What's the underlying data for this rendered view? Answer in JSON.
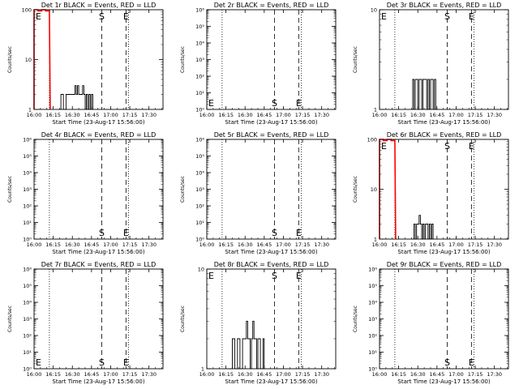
{
  "figure": {
    "background": "#ffffff",
    "foreground": "#000000",
    "event_color": "#000000",
    "lld_color": "#ff0000"
  },
  "chart_data": [
    {
      "id": "det1r",
      "type": "line",
      "title": "Det 1r BLACK = Events, RED = LLD",
      "xlabel": "Start Time (23-Aug-17 15:56:00)",
      "ylabel": "Counts/sec",
      "xlim": [
        "16:00",
        "17:41"
      ],
      "yscale": "log",
      "ylim": [
        1,
        100
      ],
      "x_ticks": [
        "16:00",
        "16:15",
        "16:30",
        "16:45",
        "17:00",
        "17:15",
        "17:30"
      ],
      "y_ticks": [
        "1",
        "10",
        "100"
      ],
      "markers": [
        {
          "label": "E",
          "x": "16:00",
          "style": "none"
        },
        {
          "label": "",
          "x": "16:12",
          "style": "dotted"
        },
        {
          "label": "S",
          "x": "16:53",
          "style": "dashed"
        },
        {
          "label": "E",
          "x": "17:12",
          "style": "dashed"
        },
        {
          "label": "",
          "x": "17:14",
          "style": "dotted"
        }
      ],
      "series": [
        {
          "color": "#000000",
          "x": [
            "16:20",
            "16:21",
            "16:23",
            "16:25",
            "16:27",
            "16:29",
            "16:31",
            "16:32",
            "16:33",
            "16:34",
            "16:35",
            "16:36",
            "16:37",
            "16:38",
            "16:39",
            "16:40",
            "16:41",
            "16:42",
            "16:43",
            "16:44",
            "16:45",
            "16:46"
          ],
          "y": [
            1,
            2,
            1,
            2,
            2,
            2,
            2,
            3,
            2,
            3,
            2,
            2,
            2,
            3,
            2,
            1,
            2,
            1,
            2,
            1,
            2,
            1
          ]
        },
        {
          "color": "#ff0000",
          "x": [
            "16:00",
            "16:03",
            "16:06",
            "16:09",
            "16:12"
          ],
          "y": [
            100,
            95,
            100,
            95,
            100
          ]
        }
      ]
    },
    {
      "id": "det2r",
      "type": "line",
      "title": "Det 2r BLACK = Events, RED = LLD",
      "xlabel": "Start Time (23-Aug-17 15:56:00)",
      "ylabel": "Counts/sec",
      "xlim": [
        "16:00",
        "17:41"
      ],
      "yscale": "log",
      "ylim": [
        1,
        1000000
      ],
      "x_ticks": [
        "16:00",
        "16:15",
        "16:30",
        "16:45",
        "17:00",
        "17:15",
        "17:30"
      ],
      "y_ticks": [
        "10⁰",
        "10¹",
        "10²",
        "10³",
        "10⁴",
        "10⁵",
        "10⁶"
      ],
      "markers": [
        {
          "label": "E",
          "x": "16:00",
          "style": "none"
        },
        {
          "label": "",
          "x": "16:12",
          "style": "dotted"
        },
        {
          "label": "S",
          "x": "16:53",
          "style": "dashed"
        },
        {
          "label": "E",
          "x": "17:12",
          "style": "dashed"
        },
        {
          "label": "",
          "x": "17:14",
          "style": "dotted"
        }
      ],
      "series": []
    },
    {
      "id": "det3r",
      "type": "line",
      "title": "Det 3r BLACK = Events, RED = LLD",
      "xlabel": "Start Time (23-Aug-17 15:56:00)",
      "ylabel": "Counts/sec",
      "xlim": [
        "16:00",
        "17:41"
      ],
      "yscale": "log",
      "ylim": [
        1,
        10
      ],
      "x_ticks": [
        "16:00",
        "16:15",
        "16:30",
        "16:45",
        "17:00",
        "17:15",
        "17:30"
      ],
      "y_ticks": [
        "1",
        "10"
      ],
      "markers": [
        {
          "label": "E",
          "x": "16:00",
          "style": "none"
        },
        {
          "label": "",
          "x": "16:12",
          "style": "dotted"
        },
        {
          "label": "S",
          "x": "16:53",
          "style": "dashed"
        },
        {
          "label": "E",
          "x": "17:12",
          "style": "dashed"
        },
        {
          "label": "",
          "x": "17:14",
          "style": "dotted"
        }
      ],
      "series": [
        {
          "color": "#000000",
          "x": [
            "16:25",
            "16:26",
            "16:27",
            "16:28",
            "16:29",
            "16:30",
            "16:31",
            "16:32",
            "16:33",
            "16:34",
            "16:35",
            "16:36",
            "16:37",
            "16:38",
            "16:39",
            "16:40",
            "16:41",
            "16:42",
            "16:43",
            "16:44",
            "16:45"
          ],
          "y": [
            1,
            2,
            1,
            2,
            2,
            1,
            2,
            2,
            1,
            2,
            2,
            2,
            1,
            2,
            1,
            2,
            2,
            1,
            2,
            1,
            1
          ]
        }
      ]
    },
    {
      "id": "det4r",
      "type": "line",
      "title": "Det 4r BLACK = Events, RED = LLD",
      "xlabel": "Start Time (23-Aug-17 15:56:00)",
      "ylabel": "Counts/sec",
      "xlim": [
        "16:00",
        "17:41"
      ],
      "yscale": "log",
      "ylim": [
        1,
        1000000
      ],
      "x_ticks": [
        "16:00",
        "16:15",
        "16:30",
        "16:45",
        "17:00",
        "17:15",
        "17:30"
      ],
      "y_ticks": [
        "10⁰",
        "10¹",
        "10²",
        "10³",
        "10⁴",
        "10⁵",
        "10⁶"
      ],
      "markers": [
        {
          "label": "",
          "x": "16:12",
          "style": "dotted"
        },
        {
          "label": "S",
          "x": "16:53",
          "style": "dashed"
        },
        {
          "label": "E",
          "x": "17:12",
          "style": "dashed"
        },
        {
          "label": "",
          "x": "17:14",
          "style": "dotted"
        }
      ],
      "series": []
    },
    {
      "id": "det5r",
      "type": "line",
      "title": "Det 5r BLACK = Events, RED = LLD",
      "xlabel": "Start Time (23-Aug-17 15:56:00)",
      "ylabel": "Counts/sec",
      "xlim": [
        "16:00",
        "17:41"
      ],
      "yscale": "log",
      "ylim": [
        1,
        1000000
      ],
      "x_ticks": [
        "16:00",
        "16:15",
        "16:30",
        "16:45",
        "17:00",
        "17:15",
        "17:30"
      ],
      "y_ticks": [
        "10⁰",
        "10¹",
        "10²",
        "10³",
        "10⁴",
        "10⁵",
        "10⁶"
      ],
      "markers": [
        {
          "label": "",
          "x": "16:12",
          "style": "dotted"
        },
        {
          "label": "S",
          "x": "16:53",
          "style": "dashed"
        },
        {
          "label": "E",
          "x": "17:12",
          "style": "dashed"
        },
        {
          "label": "",
          "x": "17:14",
          "style": "dotted"
        }
      ],
      "series": []
    },
    {
      "id": "det6r",
      "type": "line",
      "title": "Det 6r BLACK = Events, RED = LLD",
      "xlabel": "Start Time (23-Aug-17 15:56:00)",
      "ylabel": "Counts/sec",
      "xlim": [
        "16:00",
        "17:41"
      ],
      "yscale": "log",
      "ylim": [
        1,
        100
      ],
      "x_ticks": [
        "16:00",
        "16:15",
        "16:30",
        "16:45",
        "17:00",
        "17:15",
        "17:30"
      ],
      "y_ticks": [
        "1",
        "10",
        "100"
      ],
      "markers": [
        {
          "label": "E",
          "x": "16:00",
          "style": "none"
        },
        {
          "label": "",
          "x": "16:12",
          "style": "dotted"
        },
        {
          "label": "S",
          "x": "16:53",
          "style": "dashed"
        },
        {
          "label": "E",
          "x": "17:12",
          "style": "dashed"
        },
        {
          "label": "",
          "x": "17:14",
          "style": "dotted"
        }
      ],
      "series": [
        {
          "color": "#000000",
          "x": [
            "16:26",
            "16:27",
            "16:28",
            "16:29",
            "16:30",
            "16:31",
            "16:32",
            "16:33",
            "16:34",
            "16:35",
            "16:36",
            "16:37",
            "16:38",
            "16:39",
            "16:40",
            "16:41",
            "16:42"
          ],
          "y": [
            1,
            2,
            1,
            2,
            2,
            3,
            2,
            1,
            2,
            1,
            2,
            2,
            1,
            2,
            1,
            2,
            1
          ]
        },
        {
          "color": "#ff0000",
          "x": [
            "16:00",
            "16:03",
            "16:06",
            "16:09",
            "16:12"
          ],
          "y": [
            100,
            95,
            100,
            95,
            100
          ]
        }
      ]
    },
    {
      "id": "det7r",
      "type": "line",
      "title": "Det 7r BLACK = Events, RED = LLD",
      "xlabel": "Start Time (23-Aug-17 15:56:00)",
      "ylabel": "Counts/sec",
      "xlim": [
        "16:00",
        "17:41"
      ],
      "yscale": "log",
      "ylim": [
        1,
        1000000
      ],
      "x_ticks": [
        "16:00",
        "16:15",
        "16:30",
        "16:45",
        "17:00",
        "17:15",
        "17:30"
      ],
      "y_ticks": [
        "10⁰",
        "10¹",
        "10²",
        "10³",
        "10⁴",
        "10⁵",
        "10⁶"
      ],
      "markers": [
        {
          "label": "E",
          "x": "16:00",
          "style": "none"
        },
        {
          "label": "",
          "x": "16:12",
          "style": "dotted"
        },
        {
          "label": "S",
          "x": "16:53",
          "style": "dashed"
        },
        {
          "label": "E",
          "x": "17:12",
          "style": "dashed"
        },
        {
          "label": "",
          "x": "17:14",
          "style": "dotted"
        }
      ],
      "series": []
    },
    {
      "id": "det8r",
      "type": "line",
      "title": "Det 8r BLACK = Events, RED = LLD",
      "xlabel": "Start Time (23-Aug-17 15:56:00)",
      "ylabel": "Counts/sec",
      "xlim": [
        "16:00",
        "17:41"
      ],
      "yscale": "log",
      "ylim": [
        1,
        10
      ],
      "x_ticks": [
        "16:00",
        "16:15",
        "16:30",
        "16:45",
        "17:00",
        "17:15",
        "17:30"
      ],
      "y_ticks": [
        "1",
        "10"
      ],
      "markers": [
        {
          "label": "E",
          "x": "16:00",
          "style": "none"
        },
        {
          "label": "",
          "x": "16:12",
          "style": "dotted"
        },
        {
          "label": "S",
          "x": "16:53",
          "style": "dashed"
        },
        {
          "label": "E",
          "x": "17:12",
          "style": "dashed"
        },
        {
          "label": "",
          "x": "17:14",
          "style": "dotted"
        }
      ],
      "series": [
        {
          "color": "#000000",
          "x": [
            "16:17",
            "16:20",
            "16:22",
            "16:24",
            "16:26",
            "16:28",
            "16:30",
            "16:31",
            "16:32",
            "16:33",
            "16:34",
            "16:35",
            "16:36",
            "16:37",
            "16:38",
            "16:39",
            "16:40",
            "16:42",
            "16:44",
            "16:45"
          ],
          "y": [
            1,
            2,
            1,
            2,
            1,
            2,
            2,
            3,
            2,
            2,
            1,
            2,
            3,
            2,
            2,
            1,
            2,
            1,
            2,
            1
          ]
        }
      ]
    },
    {
      "id": "det9r",
      "type": "line",
      "title": "Det 9r BLACK = Events, RED = LLD",
      "xlabel": "Start Time (23-Aug-17 15:56:00)",
      "ylabel": "Counts/sec",
      "xlim": [
        "16:00",
        "17:41"
      ],
      "yscale": "log",
      "ylim": [
        1,
        1000000
      ],
      "x_ticks": [
        "16:00",
        "16:15",
        "16:30",
        "16:45",
        "17:00",
        "17:15",
        "17:30"
      ],
      "y_ticks": [
        "10⁰",
        "10¹",
        "10²",
        "10³",
        "10⁴",
        "10⁵",
        "10⁶"
      ],
      "markers": [
        {
          "label": "",
          "x": "16:12",
          "style": "dotted"
        },
        {
          "label": "S",
          "x": "16:53",
          "style": "dashed"
        },
        {
          "label": "E",
          "x": "17:12",
          "style": "dashed"
        },
        {
          "label": "",
          "x": "17:14",
          "style": "dotted"
        }
      ],
      "series": []
    }
  ]
}
